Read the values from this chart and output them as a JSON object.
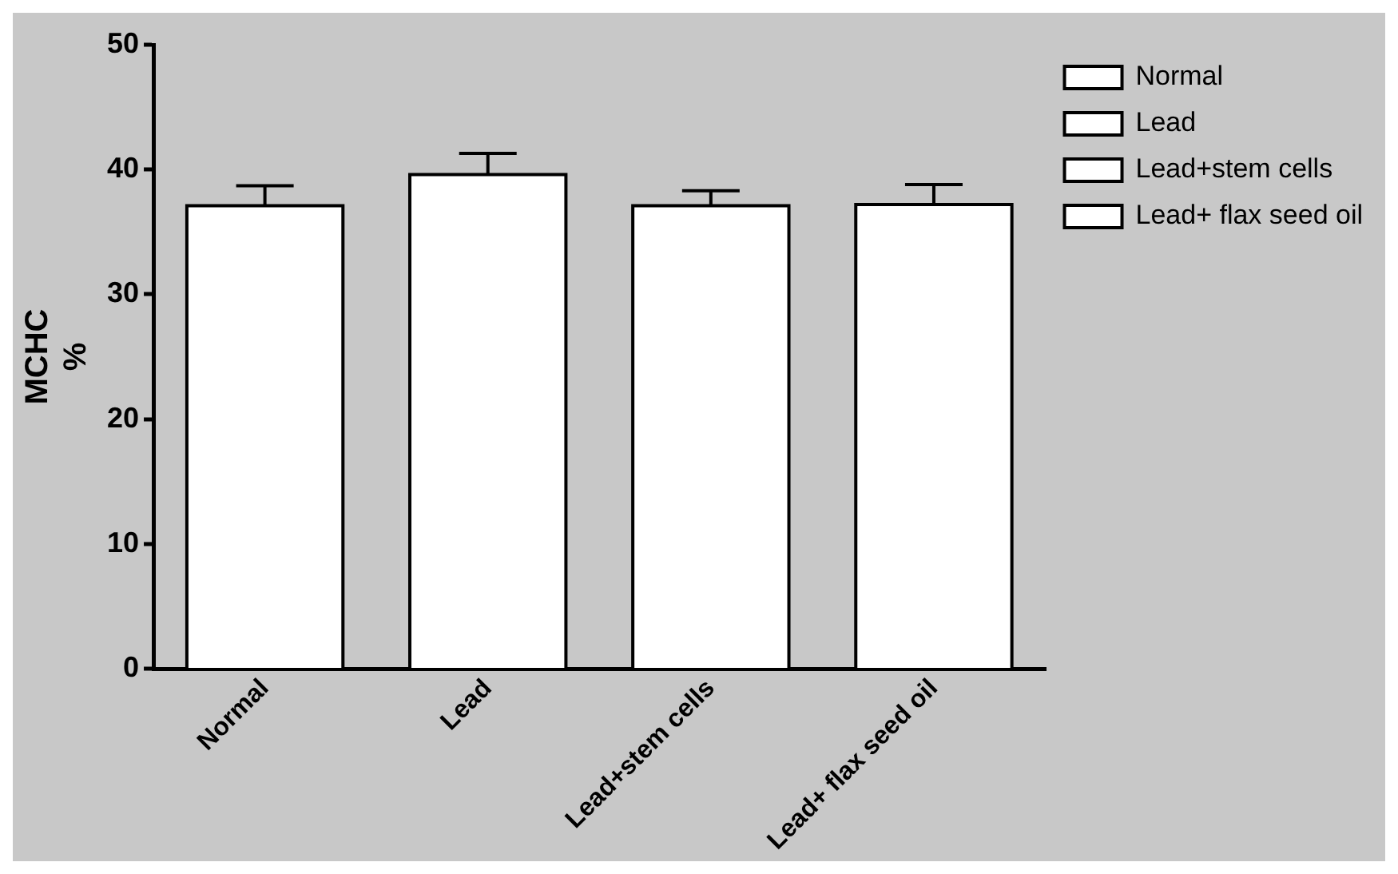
{
  "chart_data": {
    "type": "bar",
    "ylabel": "MCHC\n%",
    "categories": [
      "Normal",
      "Lead",
      "Lead+stem cells",
      "Lead+ flax seed oil"
    ],
    "series": [
      {
        "name": "Normal",
        "color": "#ffffff",
        "values": [
          37.1,
          null,
          null,
          null
        ],
        "errors": [
          1.6,
          null,
          null,
          null
        ]
      },
      {
        "name": "Lead",
        "color": "#ffffff",
        "values": [
          null,
          39.6,
          null,
          null
        ],
        "errors": [
          null,
          1.7,
          null,
          null
        ]
      },
      {
        "name": "Lead+stem cells",
        "color": "#ffffff",
        "values": [
          null,
          null,
          37.1,
          null
        ],
        "errors": [
          null,
          null,
          1.2,
          null
        ]
      },
      {
        "name": "Lead+ flax seed oil",
        "color": "#ffffff",
        "values": [
          null,
          null,
          null,
          37.2
        ],
        "errors": [
          null,
          null,
          null,
          1.6
        ]
      }
    ],
    "ylim": [
      0,
      50
    ],
    "yticks": [
      0,
      10,
      20,
      30,
      40,
      50
    ],
    "grid": false,
    "legend": "top right"
  }
}
